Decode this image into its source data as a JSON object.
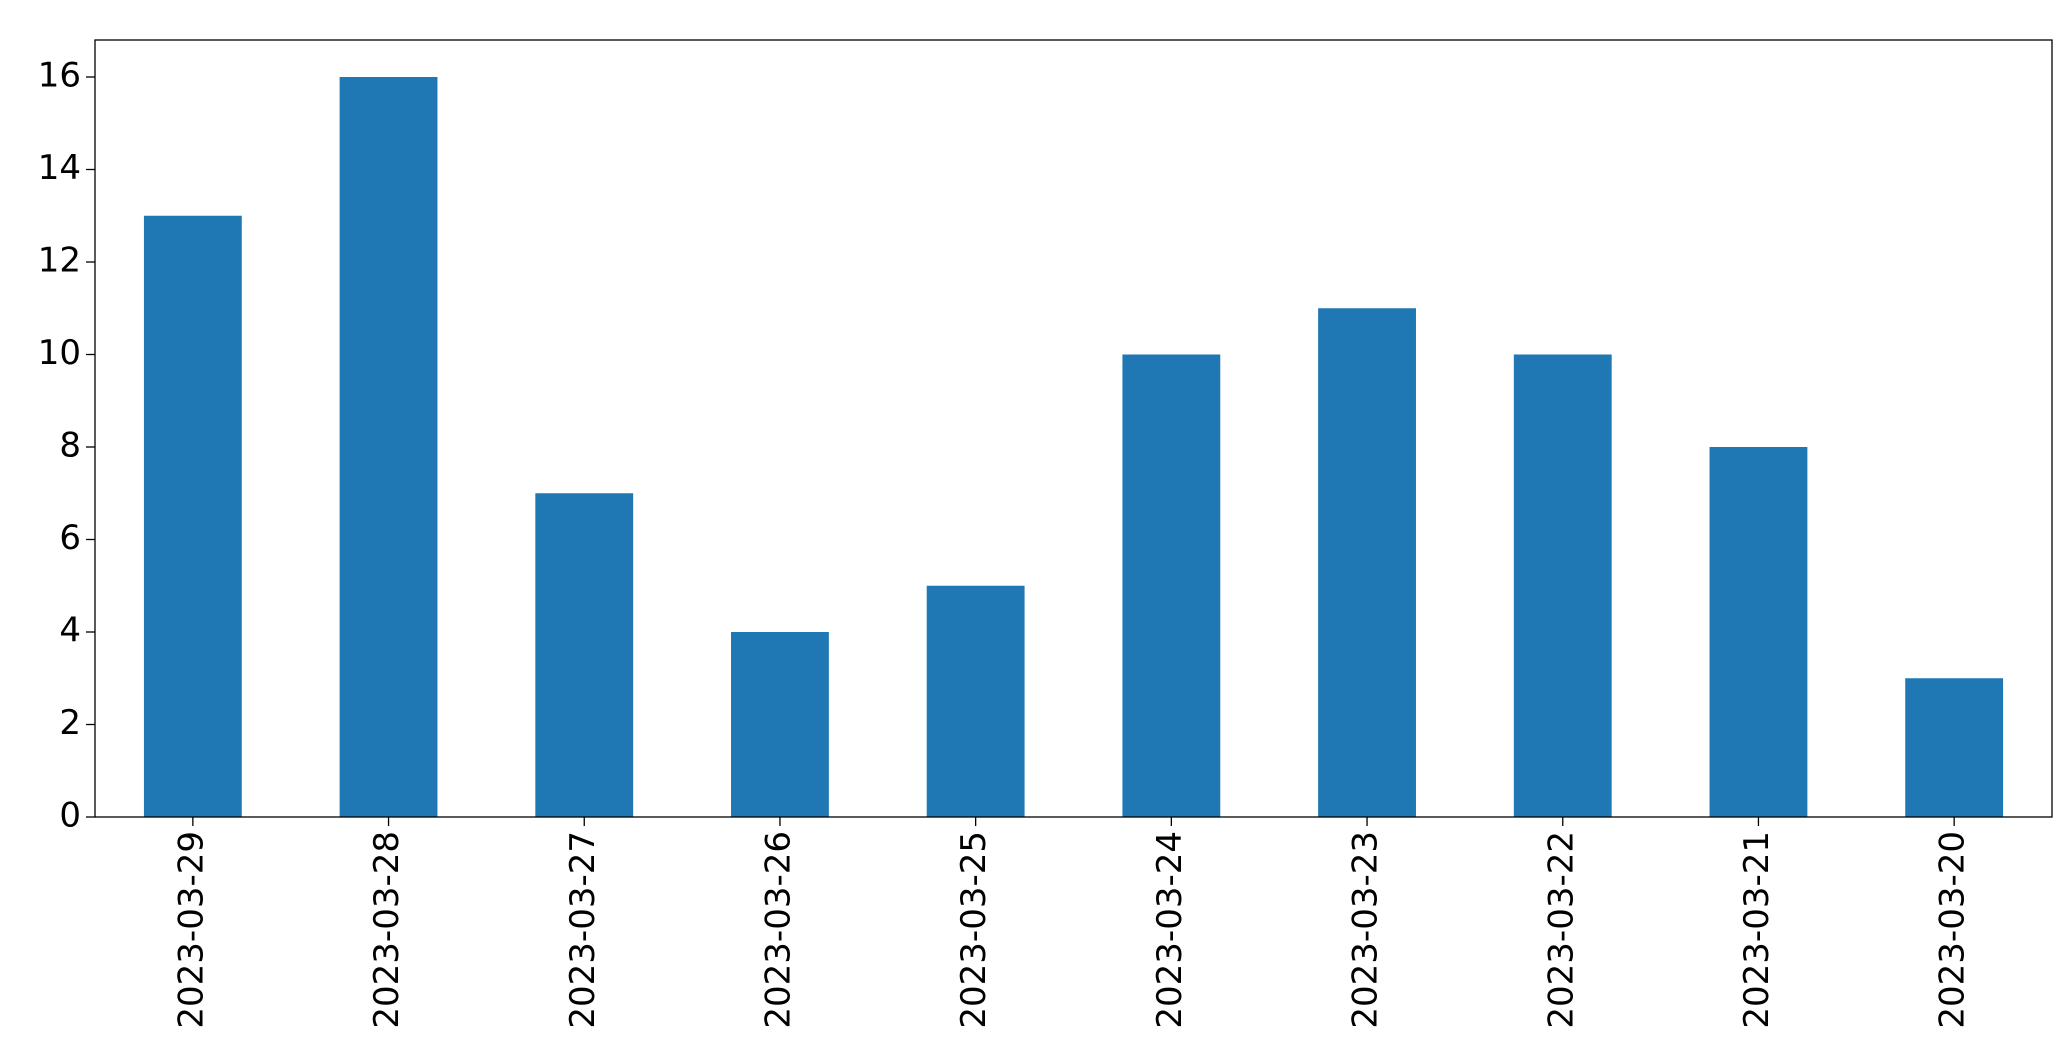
{
  "chart_data": {
    "type": "bar",
    "categories": [
      "2023-03-29",
      "2023-03-28",
      "2023-03-27",
      "2023-03-26",
      "2023-03-25",
      "2023-03-24",
      "2023-03-23",
      "2023-03-22",
      "2023-03-21",
      "2023-03-20"
    ],
    "values": [
      13,
      16,
      7,
      4,
      5,
      10,
      11,
      10,
      8,
      3
    ],
    "color": "#1f77b4",
    "ylim": [
      0,
      16.8
    ],
    "yticks": [
      0,
      2,
      4,
      6,
      8,
      10,
      12,
      14,
      16
    ],
    "grid": false
  }
}
